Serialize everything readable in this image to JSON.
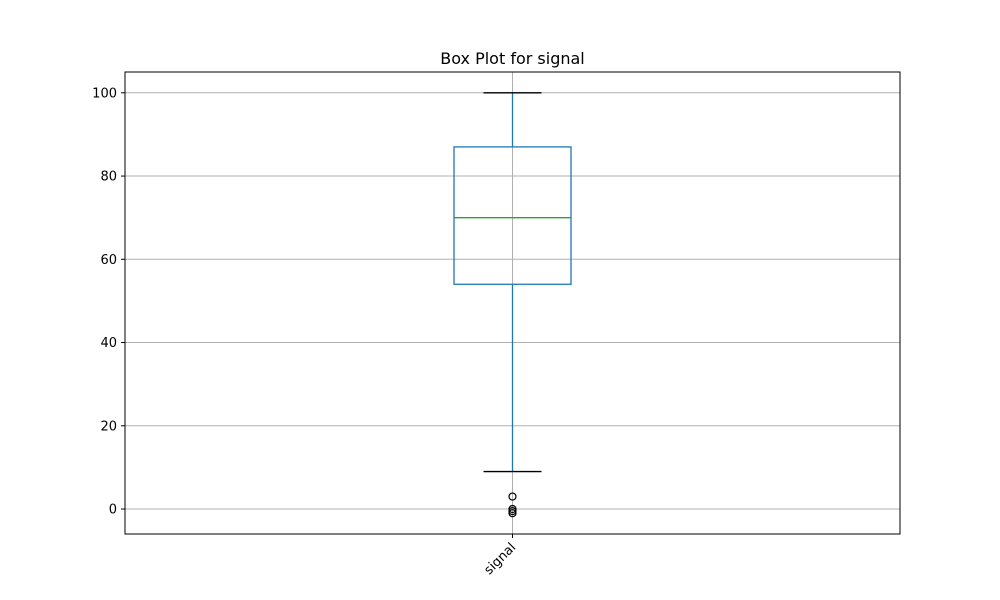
{
  "chart_data": {
    "type": "box",
    "title": "Box Plot for signal",
    "xlabel": "",
    "ylabel": "",
    "categories": [
      "signal"
    ],
    "boxes": [
      {
        "name": "signal",
        "whisker_low": 9,
        "q1": 54,
        "median": 70,
        "q3": 87,
        "whisker_high": 100,
        "outliers": [
          3,
          0,
          -0.5,
          -1
        ]
      }
    ],
    "ylim": [
      -6,
      105
    ],
    "yticks": [
      0,
      20,
      40,
      60,
      80,
      100
    ],
    "ytick_labels": [
      "0",
      "20",
      "40",
      "60",
      "80",
      "100"
    ],
    "xtick_labels": [
      "signal"
    ],
    "grid": true,
    "colors": {
      "box": "#1f77b4",
      "median": "#2ca02c",
      "caps": "#000000",
      "grid": "#b0b0b0",
      "outlier": "#000000"
    }
  }
}
